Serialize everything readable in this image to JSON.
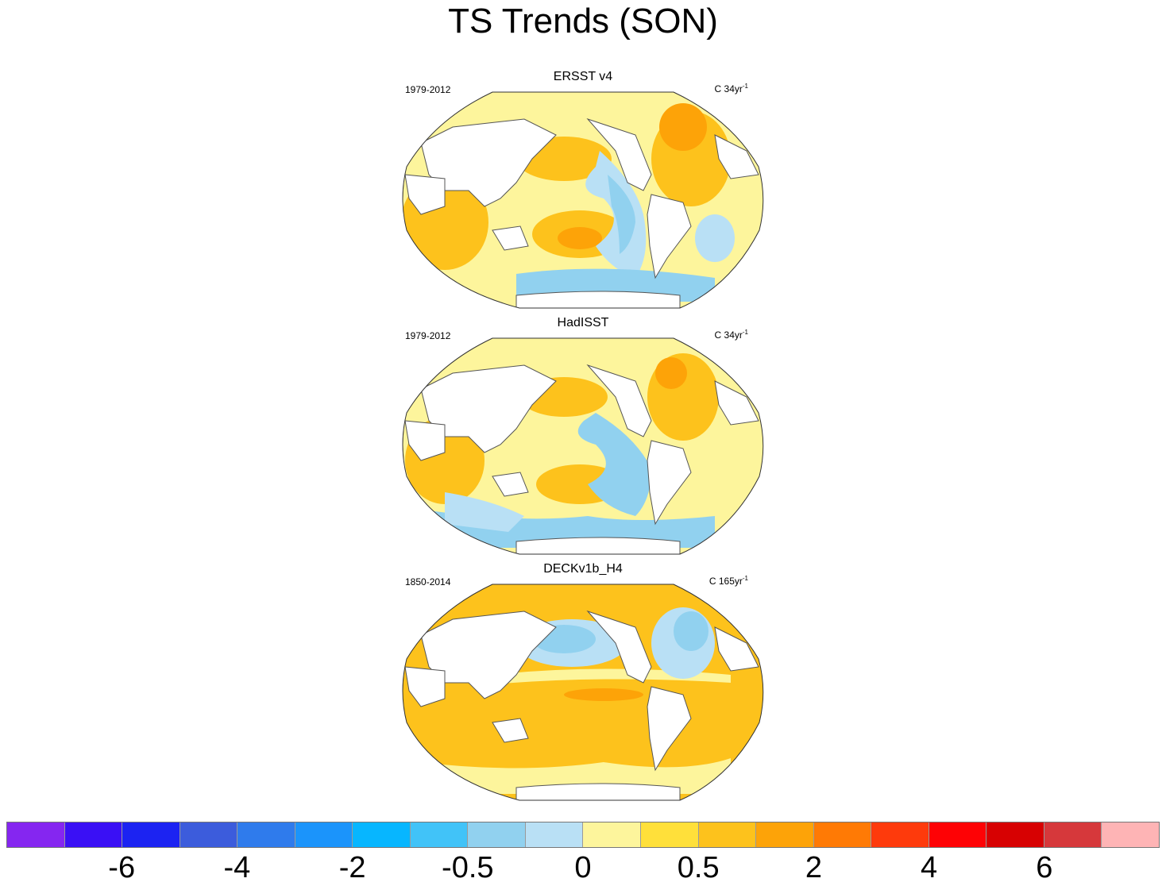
{
  "title": "TS Trends (SON)",
  "panels": [
    {
      "title": "ERSST v4",
      "period": "1979-2012",
      "units_prefix": "C 34yr",
      "units_sup": "-1"
    },
    {
      "title": "HadISST",
      "period": "1979-2012",
      "units_prefix": "C 34yr",
      "units_sup": "-1"
    },
    {
      "title": "DECKv1b_H4",
      "period": "1850-2014",
      "units_prefix": "C 165yr",
      "units_sup": "-1"
    }
  ],
  "colorbar": {
    "colors": [
      "#8526f0",
      "#3a10f5",
      "#1c23f2",
      "#3c5cdc",
      "#2f7bec",
      "#1b94fb",
      "#07b6ff",
      "#41c3f8",
      "#91d1ef",
      "#b9e0f5",
      "#fdf59c",
      "#ffe03a",
      "#fdc21c",
      "#fda308",
      "#ff7a05",
      "#fe3a0c",
      "#fe0205",
      "#d70102",
      "#d6383b",
      "#feb4b5"
    ],
    "labels": [
      "-6",
      "-4",
      "-2",
      "-0.5",
      "0",
      "0.5",
      "2",
      "4",
      "6"
    ]
  }
}
